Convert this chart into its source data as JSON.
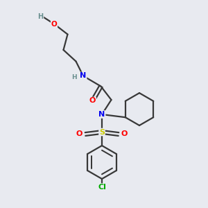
{
  "bg_color": "#e8eaf0",
  "bond_color": "#383838",
  "bond_lw": 1.6,
  "atom_colors": {
    "O": "#ff0000",
    "N": "#0000ee",
    "S": "#cccc00",
    "Cl": "#00aa00",
    "H": "#6a9090",
    "C": "#383838"
  }
}
